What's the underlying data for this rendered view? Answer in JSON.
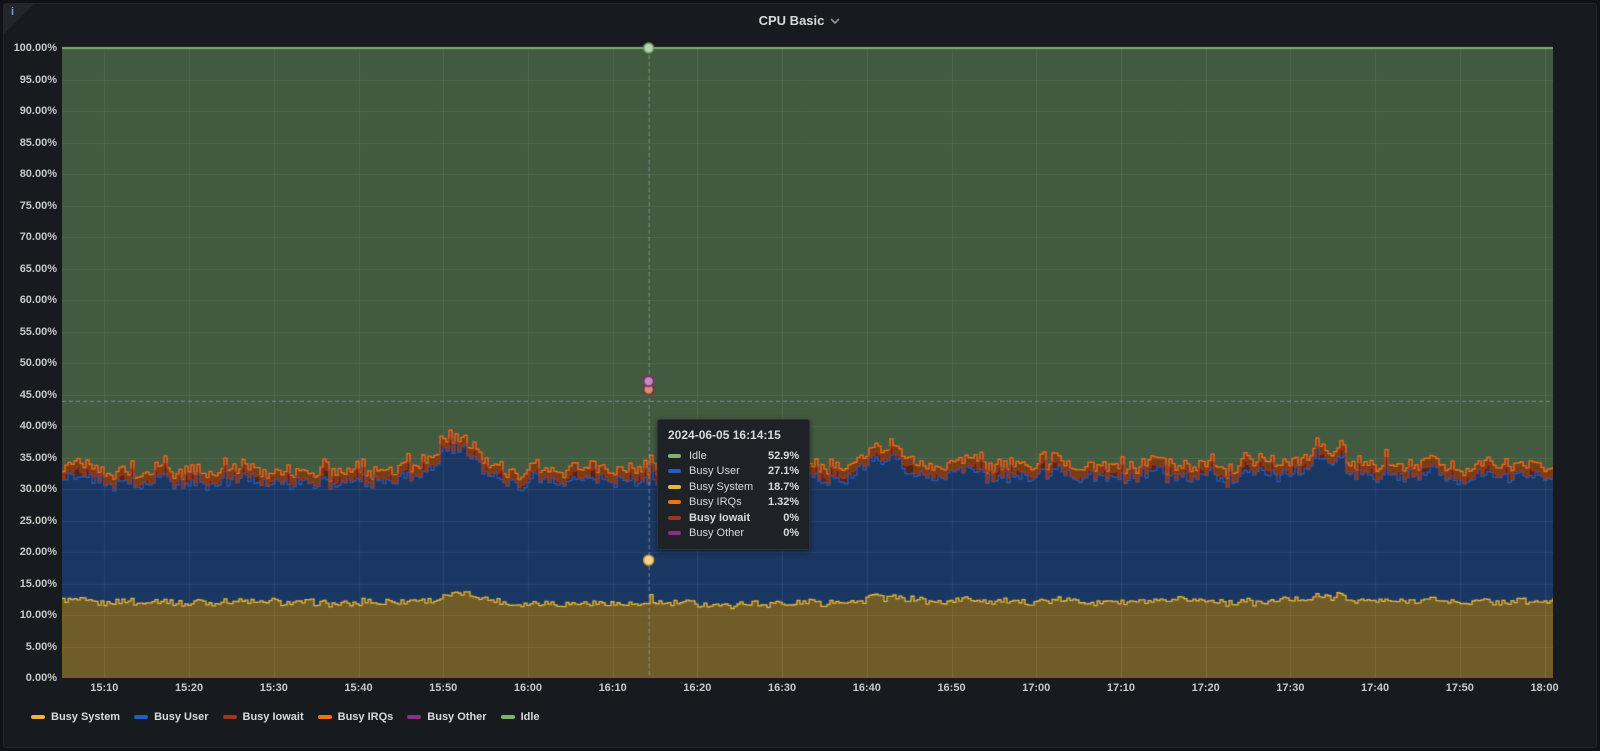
{
  "panel": {
    "title": "CPU Basic",
    "info_icon_glyph": "i"
  },
  "tooltip": {
    "timestamp": "2024-06-05 16:14:15",
    "rows": [
      {
        "label": "Idle",
        "value": "52.9%",
        "color": "#7EB26D",
        "bold": false
      },
      {
        "label": "Busy User",
        "value": "27.1%",
        "color": "#1F60C4",
        "bold": false
      },
      {
        "label": "Busy System",
        "value": "18.7%",
        "color": "#EAB839",
        "bold": false
      },
      {
        "label": "Busy IRQs",
        "value": "1.32%",
        "color": "#F2720C",
        "bold": false
      },
      {
        "label": "Busy Iowait",
        "value": "0%",
        "color": "#A0351F",
        "bold": true
      },
      {
        "label": "Busy Other",
        "value": "0%",
        "color": "#8A2E86",
        "bold": false
      }
    ]
  },
  "legend": {
    "items": [
      {
        "label": "Busy System",
        "color": "#EAB839"
      },
      {
        "label": "Busy User",
        "color": "#1F60C4"
      },
      {
        "label": "Busy Iowait",
        "color": "#A0351F"
      },
      {
        "label": "Busy IRQs",
        "color": "#F2720C"
      },
      {
        "label": "Busy Other",
        "color": "#8A2E86"
      },
      {
        "label": "Idle",
        "color": "#7EB26D"
      }
    ]
  },
  "chart_data": {
    "type": "area",
    "stacked": true,
    "unit": "percent",
    "ylim": [
      0,
      100
    ],
    "grid": true,
    "legend_position": "bottom",
    "time_domain": [
      "15:05",
      "18:01"
    ],
    "y_ticks": [
      {
        "label": "100.00%",
        "pct": 100
      },
      {
        "label": "95.00%",
        "pct": 95
      },
      {
        "label": "90.00%",
        "pct": 90
      },
      {
        "label": "85.00%",
        "pct": 85
      },
      {
        "label": "80.00%",
        "pct": 80
      },
      {
        "label": "75.00%",
        "pct": 75
      },
      {
        "label": "70.00%",
        "pct": 70
      },
      {
        "label": "65.00%",
        "pct": 65
      },
      {
        "label": "60.00%",
        "pct": 60
      },
      {
        "label": "55.00%",
        "pct": 55
      },
      {
        "label": "50.00%",
        "pct": 50
      },
      {
        "label": "45.00%",
        "pct": 45
      },
      {
        "label": "40.00%",
        "pct": 40
      },
      {
        "label": "35.00%",
        "pct": 35
      },
      {
        "label": "30.00%",
        "pct": 30
      },
      {
        "label": "25.00%",
        "pct": 25
      },
      {
        "label": "20.00%",
        "pct": 20
      },
      {
        "label": "15.00%",
        "pct": 15
      },
      {
        "label": "10.00%",
        "pct": 10
      },
      {
        "label": "5.00%",
        "pct": 5
      },
      {
        "label": "0.00%",
        "pct": 0
      }
    ],
    "x_ticks": [
      {
        "label": "15:10"
      },
      {
        "label": "15:20"
      },
      {
        "label": "15:30"
      },
      {
        "label": "15:40"
      },
      {
        "label": "15:50"
      },
      {
        "label": "16:00"
      },
      {
        "label": "16:10"
      },
      {
        "label": "16:20"
      },
      {
        "label": "16:30"
      },
      {
        "label": "16:40"
      },
      {
        "label": "16:50"
      },
      {
        "label": "17:00"
      },
      {
        "label": "17:10"
      },
      {
        "label": "17:20"
      },
      {
        "label": "17:30"
      },
      {
        "label": "17:40"
      },
      {
        "label": "17:50"
      },
      {
        "label": "18:00"
      }
    ],
    "series": [
      {
        "name": "Busy System",
        "color": "#EAB839",
        "noise": 0.9,
        "keyframes": [
          [
            0,
            12.1
          ],
          [
            20,
            11.9
          ],
          [
            40,
            12.1
          ],
          [
            44,
            12.3
          ],
          [
            46,
            13.5
          ],
          [
            49,
            12.9
          ],
          [
            52,
            12.0
          ],
          [
            62,
            12.0
          ],
          [
            68,
            11.8
          ],
          [
            69.1,
            11.8
          ],
          [
            69.25,
            18.7
          ],
          [
            69.45,
            11.8
          ],
          [
            80,
            11.7
          ],
          [
            93,
            12.0
          ],
          [
            96,
            13.0
          ],
          [
            99,
            12.3
          ],
          [
            110,
            12.2
          ],
          [
            125,
            12.1
          ],
          [
            140,
            12.2
          ],
          [
            147,
            12.4
          ],
          [
            149,
            13.2
          ],
          [
            152,
            12.4
          ],
          [
            160,
            12.2
          ],
          [
            176,
            12.3
          ]
        ]
      },
      {
        "name": "Busy User",
        "color": "#1F60C4",
        "noise": 1.6,
        "keyframes": [
          [
            0,
            19.3
          ],
          [
            15,
            19.4
          ],
          [
            30,
            19.3
          ],
          [
            42,
            19.6
          ],
          [
            45,
            22.8
          ],
          [
            47,
            22.5
          ],
          [
            49,
            21.0
          ],
          [
            52,
            19.6
          ],
          [
            60,
            19.2
          ],
          [
            66,
            19.0
          ],
          [
            69.1,
            19.0
          ],
          [
            69.25,
            27.1
          ],
          [
            69.45,
            18.9
          ],
          [
            73,
            18.7
          ],
          [
            85,
            19.2
          ],
          [
            93,
            19.8
          ],
          [
            96,
            22.0
          ],
          [
            98,
            21.5
          ],
          [
            101,
            20.0
          ],
          [
            112,
            19.9
          ],
          [
            130,
            19.9
          ],
          [
            146,
            20.1
          ],
          [
            148,
            22.2
          ],
          [
            151,
            21.6
          ],
          [
            154,
            20.0
          ],
          [
            165,
            19.9
          ],
          [
            176,
            20.0
          ]
        ]
      },
      {
        "name": "Busy Iowait",
        "color": "#A0351F",
        "noise": "spiky",
        "keyframes": [
          [
            0,
            0.25
          ],
          [
            69.1,
            0.25
          ],
          [
            69.25,
            0
          ],
          [
            69.45,
            0.25
          ],
          [
            176,
            0.25
          ]
        ]
      },
      {
        "name": "Busy IRQs",
        "color": "#F2720C",
        "noise": 0.25,
        "keyframes": [
          [
            0,
            1.3
          ],
          [
            69.25,
            1.32
          ],
          [
            176,
            1.3
          ]
        ]
      },
      {
        "name": "Busy Other",
        "color": "#8A2E86",
        "noise": 0,
        "keyframes": [
          [
            0,
            0
          ],
          [
            176,
            0
          ]
        ]
      },
      {
        "name": "Idle",
        "color": "#7EB26D",
        "fill_to": 100
      }
    ],
    "hover": {
      "time_label": "2024-06-05 16:14:15",
      "t_min": 69.25,
      "cursor_pct": 44.0,
      "points": [
        {
          "series": "Busy System",
          "stack_pct": 18.7
        },
        {
          "series": "Busy User",
          "stack_pct": 45.8
        },
        {
          "series": "Busy Iowait",
          "stack_pct": 45.8
        },
        {
          "series": "Busy IRQs",
          "stack_pct": 47.12
        },
        {
          "series": "Busy Other",
          "stack_pct": 47.12
        },
        {
          "series": "Idle",
          "stack_pct": 100
        }
      ]
    }
  }
}
